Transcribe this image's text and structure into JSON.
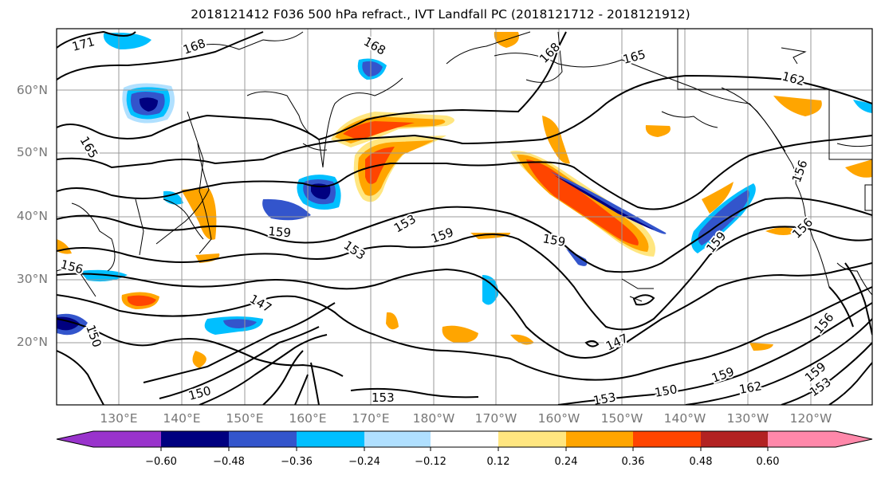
{
  "title": "2018121412 F036 500 hPa refract., IVT Landfall PC (2018121712 - 2018121912)",
  "map": {
    "lat_labels": [
      "60°N",
      "50°N",
      "40°N",
      "30°N",
      "20°N"
    ],
    "lon_labels": [
      "130°E",
      "140°E",
      "150°E",
      "160°E",
      "170°E",
      "180°W",
      "170°W",
      "160°W",
      "150°W",
      "140°W",
      "130°W",
      "120°W"
    ],
    "contour_labels": [
      "171",
      "168",
      "168",
      "168",
      "165",
      "162",
      "165",
      "159",
      "153",
      "159",
      "153",
      "159",
      "159",
      "147",
      "156",
      "150",
      "147",
      "150",
      "150",
      "153",
      "153",
      "156",
      "156",
      "156",
      "159",
      "162",
      "153",
      "159"
    ]
  },
  "colorbar": {
    "colors": [
      "#9933cc",
      "#000080",
      "#3355cc",
      "#00bfff",
      "#b0e0ff",
      "#ffffff",
      "#ffe680",
      "#ffa500",
      "#ff4500",
      "#b22222",
      "#ff88aa"
    ],
    "tick_labels": [
      "−0.60",
      "−0.48",
      "−0.36",
      "−0.24",
      "−0.12",
      "0.12",
      "0.24",
      "0.36",
      "0.48",
      "0.60"
    ]
  }
}
